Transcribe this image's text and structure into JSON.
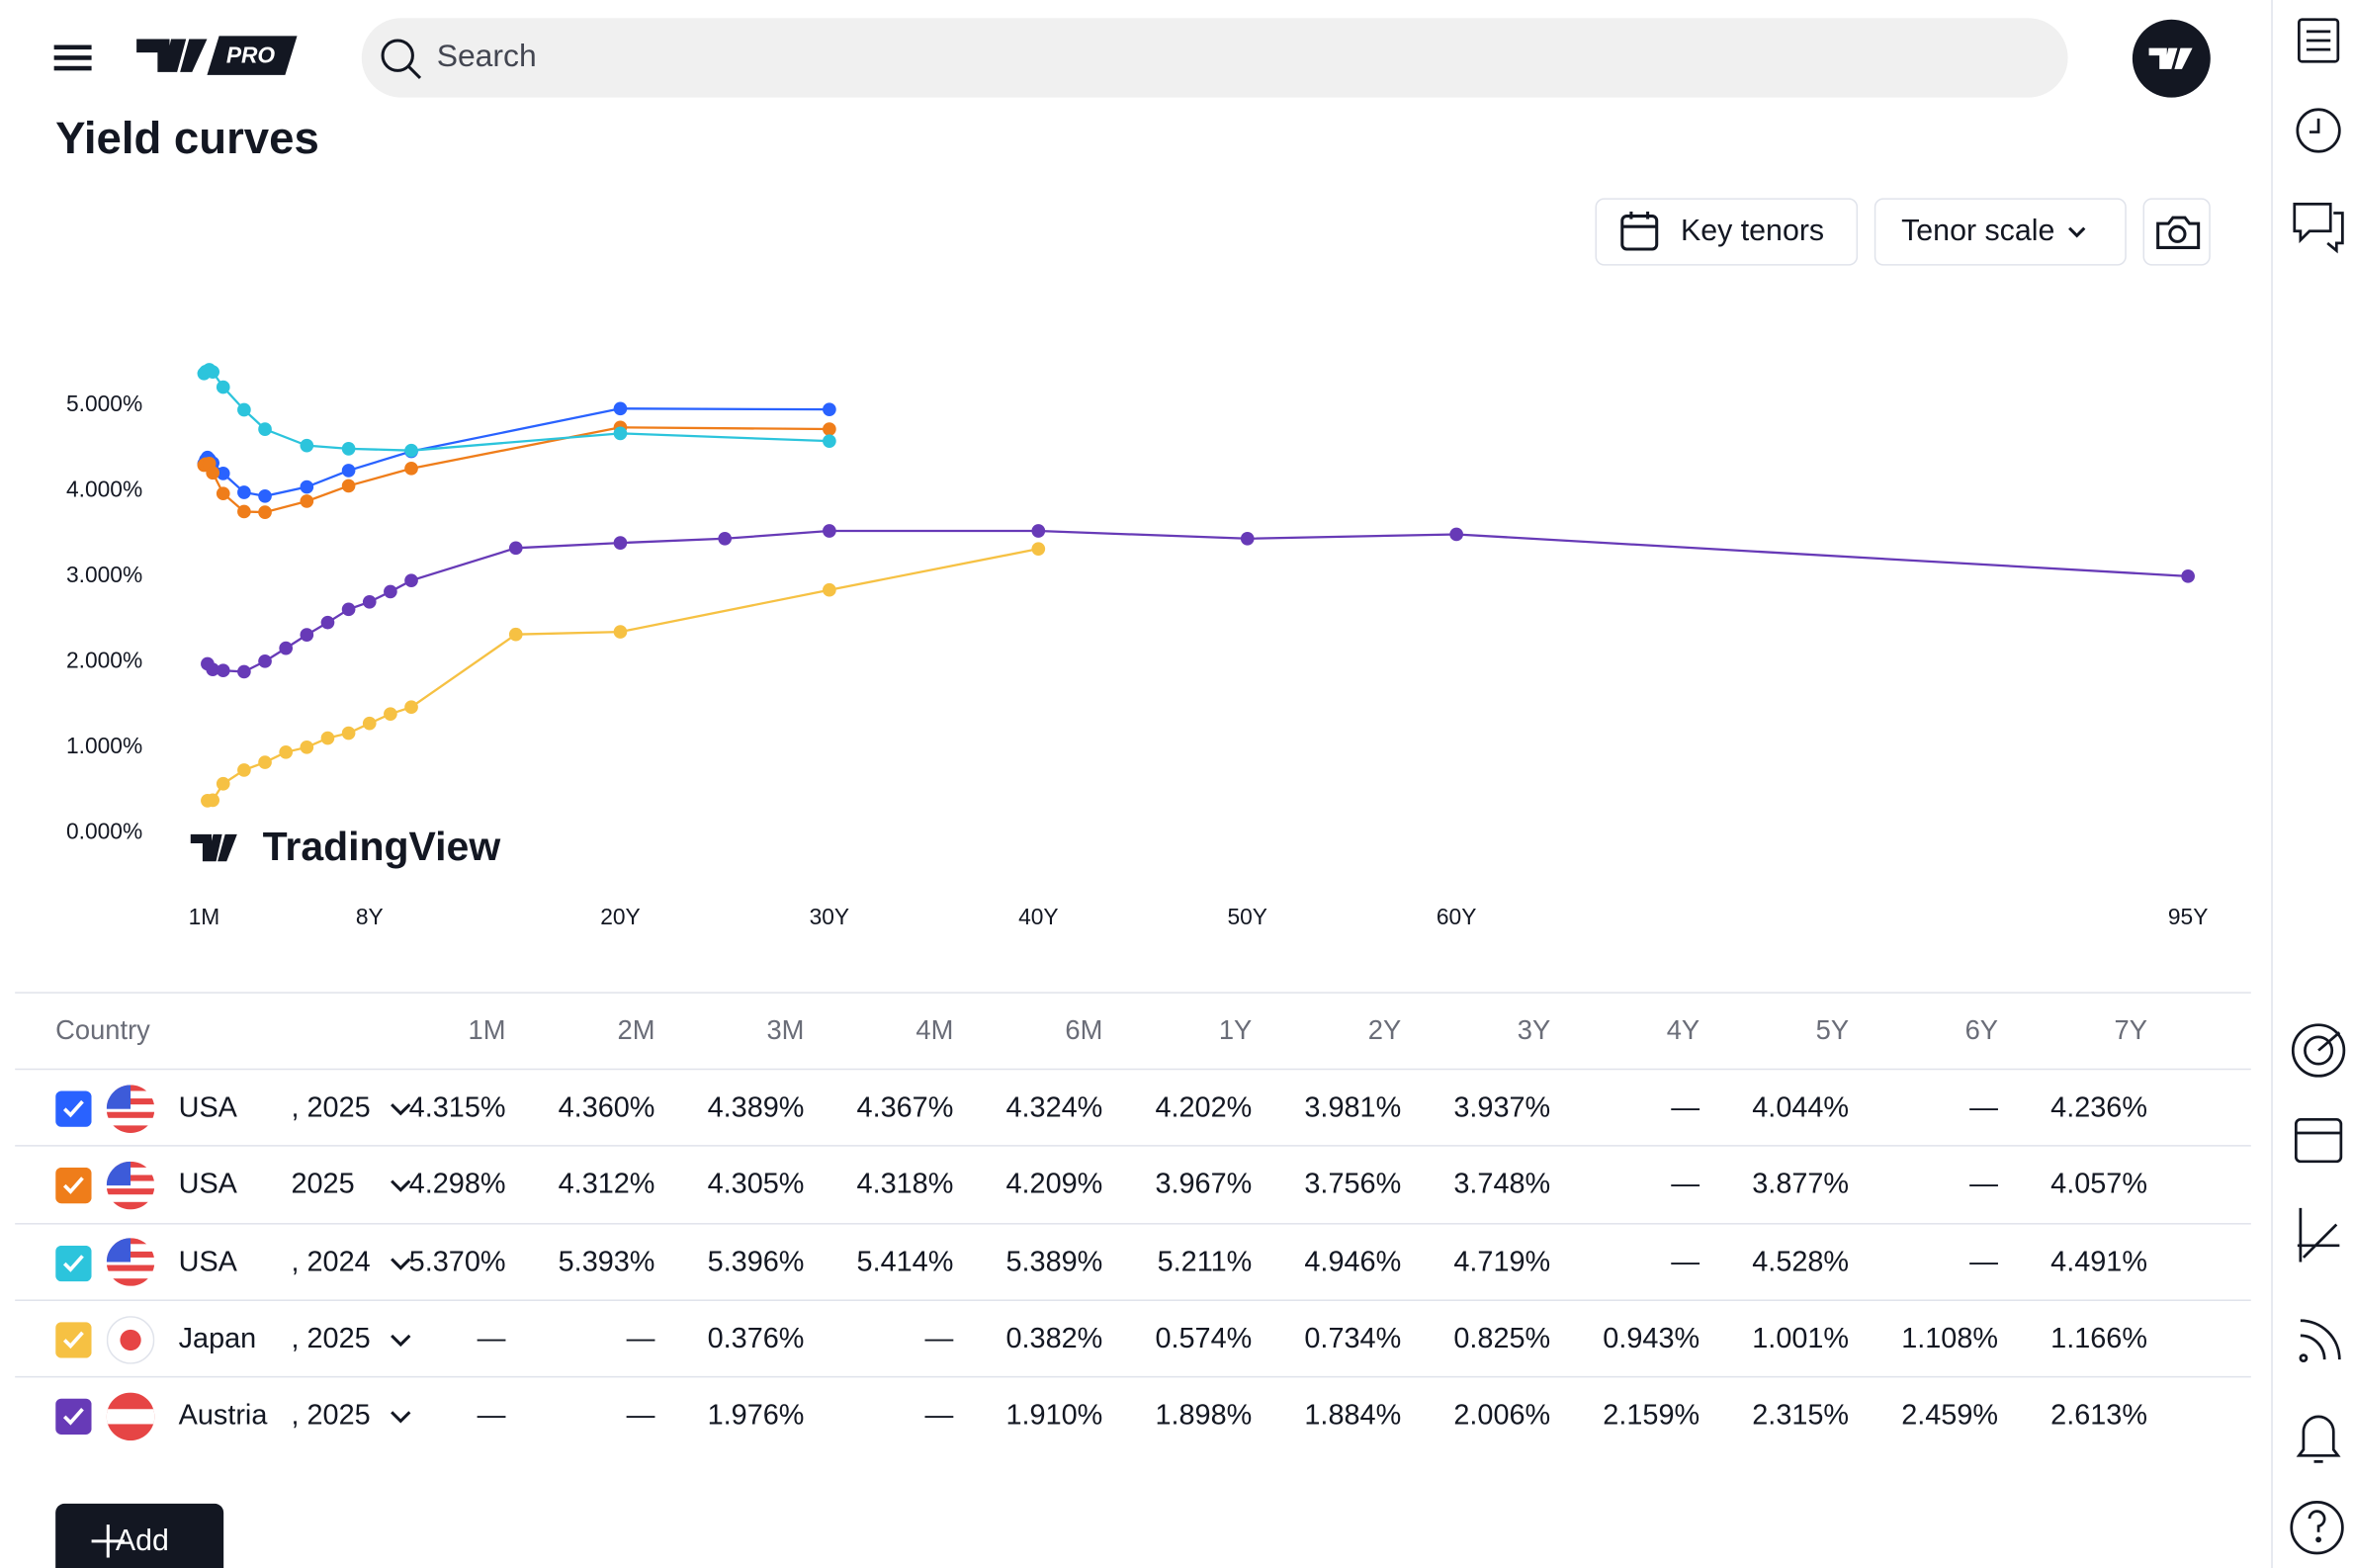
{
  "header": {
    "logo_badge": "PRO",
    "search_placeholder": "Search"
  },
  "page_title": "Yield curves",
  "toolbar": {
    "key_tenors": "Key tenors",
    "tenor_scale": "Tenor scale"
  },
  "chart_data": {
    "type": "line",
    "watermark": "TradingView",
    "xlim": [
      0,
      96
    ],
    "xticks": [
      {
        "value": 0.0833,
        "label": "1M"
      },
      {
        "value": 8,
        "label": "8Y"
      },
      {
        "value": 20,
        "label": "20Y"
      },
      {
        "value": 30,
        "label": "30Y"
      },
      {
        "value": 40,
        "label": "40Y"
      },
      {
        "value": 50,
        "label": "50Y"
      },
      {
        "value": 60,
        "label": "60Y"
      },
      {
        "value": 95,
        "label": "95Y"
      }
    ],
    "ylim": [
      -0.6,
      5.8
    ],
    "yticks": [
      {
        "value": 0,
        "label": "0.000%"
      },
      {
        "value": 1,
        "label": "1.000%"
      },
      {
        "value": 2,
        "label": "2.000%"
      },
      {
        "value": 3,
        "label": "3.000%"
      },
      {
        "value": 4,
        "label": "4.000%"
      },
      {
        "value": 5,
        "label": "5.000%"
      }
    ],
    "grid": false,
    "series": [
      {
        "color": "#2962ff",
        "x": [
          0.0833,
          0.1667,
          0.25,
          0.3333,
          0.5,
          1,
          2,
          3,
          5,
          7,
          10,
          20,
          30
        ],
        "values": [
          4.315,
          4.36,
          4.389,
          4.367,
          4.324,
          4.202,
          3.981,
          3.937,
          4.044,
          4.236,
          4.46,
          4.96,
          4.95
        ]
      },
      {
        "color": "#ef7d1a",
        "x": [
          0.0833,
          0.1667,
          0.25,
          0.3333,
          0.5,
          1,
          2,
          3,
          5,
          7,
          10,
          20,
          30
        ],
        "values": [
          4.298,
          4.312,
          4.305,
          4.318,
          4.209,
          3.967,
          3.756,
          3.748,
          3.877,
          4.057,
          4.26,
          4.74,
          4.72
        ]
      },
      {
        "color": "#2cc4dc",
        "x": [
          0.0833,
          0.1667,
          0.25,
          0.3333,
          0.5,
          1,
          2,
          3,
          5,
          7,
          10,
          20,
          30
        ],
        "values": [
          5.37,
          5.393,
          5.396,
          5.414,
          5.389,
          5.211,
          4.946,
          4.719,
          4.528,
          4.491,
          4.47,
          4.67,
          4.58
        ]
      },
      {
        "color": "#f6c143",
        "x": [
          0.25,
          0.5,
          1,
          2,
          3,
          4,
          5,
          6,
          7,
          8,
          9,
          10,
          15,
          20,
          30,
          40
        ],
        "values": [
          0.376,
          0.382,
          0.574,
          0.734,
          0.825,
          0.943,
          1.001,
          1.108,
          1.166,
          1.28,
          1.39,
          1.47,
          2.32,
          2.35,
          2.84,
          3.32
        ]
      },
      {
        "color": "#673ab7",
        "x": [
          0.25,
          0.5,
          1,
          2,
          3,
          4,
          5,
          6,
          7,
          8,
          9,
          10,
          15,
          20,
          25,
          30,
          40,
          50,
          60,
          95
        ],
        "values": [
          1.976,
          1.91,
          1.898,
          1.884,
          2.006,
          2.159,
          2.315,
          2.459,
          2.613,
          2.7,
          2.82,
          2.95,
          3.33,
          3.39,
          3.44,
          3.53,
          3.53,
          3.44,
          3.49,
          3.0
        ]
      }
    ]
  },
  "table": {
    "columns": [
      "Country",
      "1M",
      "2M",
      "3M",
      "4M",
      "6M",
      "1Y",
      "2Y",
      "3Y",
      "4Y",
      "5Y",
      "6Y",
      "7Y"
    ],
    "rows": [
      {
        "country": "USA",
        "date": ", 2025",
        "cells": [
          "4.315%",
          "4.360%",
          "4.389%",
          "4.367%",
          "4.324%",
          "4.202%",
          "3.981%",
          "3.937%",
          "—",
          "4.044%",
          "—",
          "4.236%"
        ]
      },
      {
        "country": "USA",
        "date": "2025",
        "cells": [
          "4.298%",
          "4.312%",
          "4.305%",
          "4.318%",
          "4.209%",
          "3.967%",
          "3.756%",
          "3.748%",
          "—",
          "3.877%",
          "—",
          "4.057%"
        ]
      },
      {
        "country": "USA",
        "date": ", 2024",
        "cells": [
          "5.370%",
          "5.393%",
          "5.396%",
          "5.414%",
          "5.389%",
          "5.211%",
          "4.946%",
          "4.719%",
          "—",
          "4.528%",
          "—",
          "4.491%"
        ]
      },
      {
        "country": "Japan",
        "date": ", 2025",
        "cells": [
          "—",
          "—",
          "0.376%",
          "—",
          "0.382%",
          "0.574%",
          "0.734%",
          "0.825%",
          "0.943%",
          "1.001%",
          "1.108%",
          "1.166%"
        ]
      },
      {
        "country": "Austria",
        "date": ", 2025",
        "cells": [
          "—",
          "—",
          "1.976%",
          "—",
          "1.910%",
          "1.898%",
          "1.884%",
          "2.006%",
          "2.159%",
          "2.315%",
          "2.459%",
          "2.613%"
        ]
      }
    ]
  },
  "add_button": "Add"
}
